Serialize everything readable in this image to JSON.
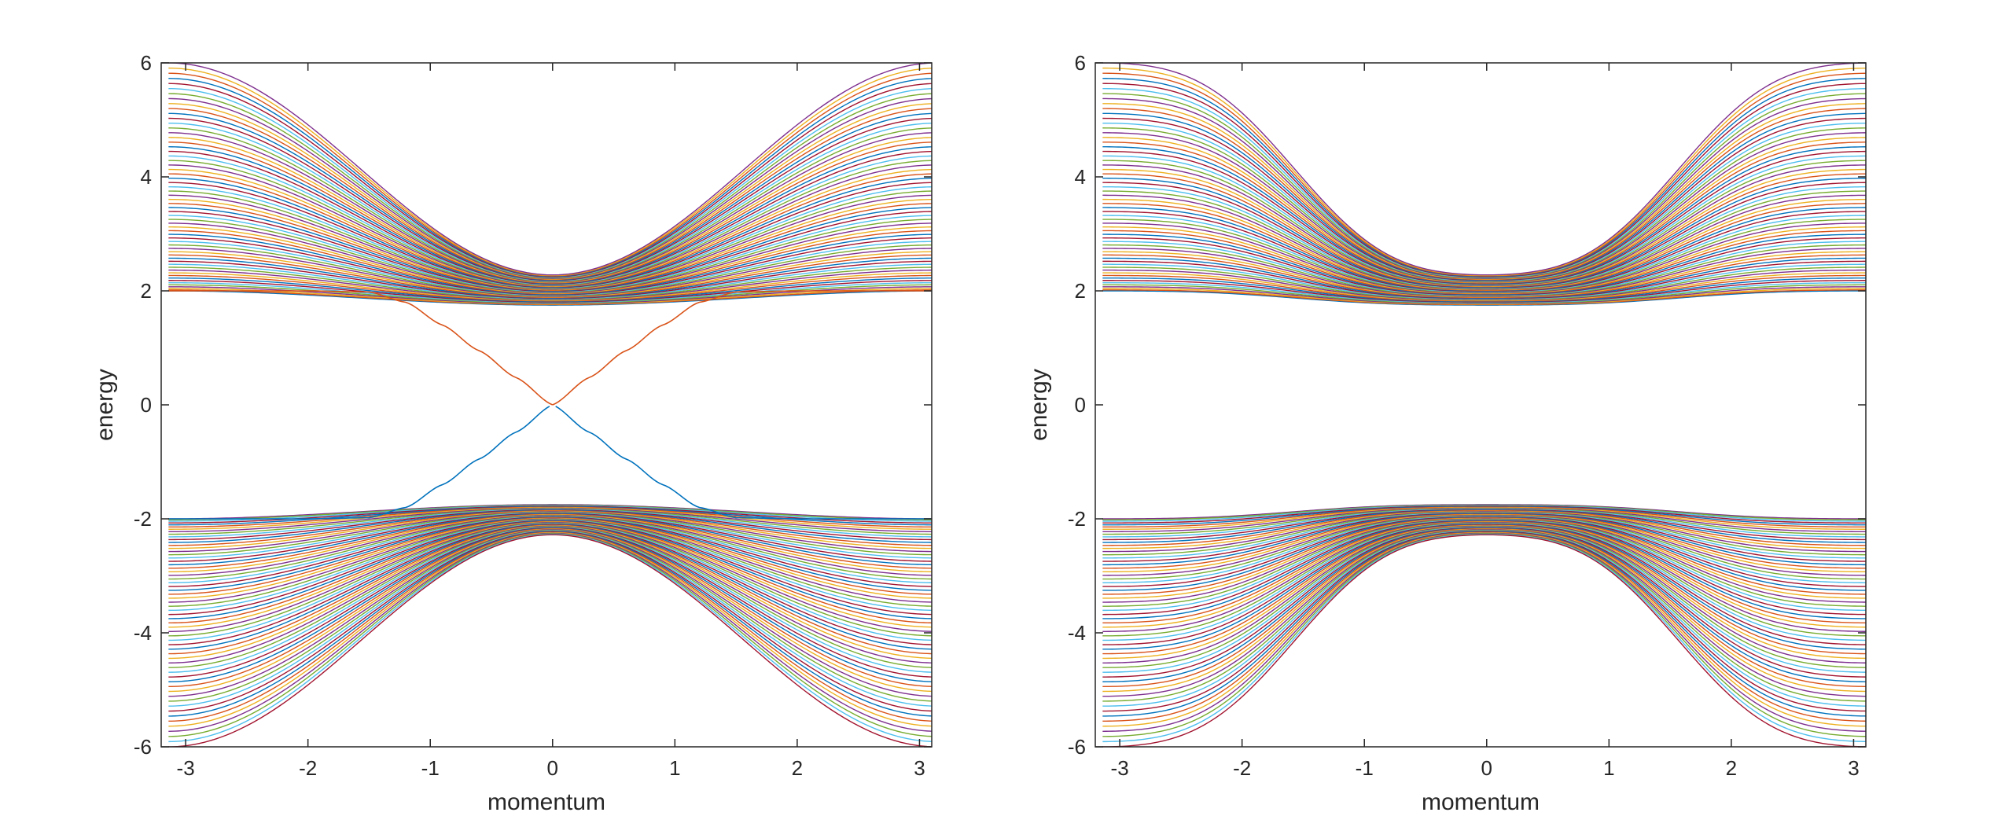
{
  "chart_data": [
    {
      "type": "line",
      "panel": "left",
      "xlabel": "momentum",
      "ylabel": "energy",
      "xlim": [
        -3.2,
        3.1
      ],
      "ylim": [
        -6,
        6
      ],
      "xticks": [
        -3,
        -2,
        -1,
        0,
        1,
        2,
        3
      ],
      "yticks": [
        -6,
        -4,
        -2,
        0,
        2,
        4,
        6
      ],
      "xtick_labels": [
        "-3",
        "-2",
        "-1",
        "0",
        "1",
        "2",
        "3"
      ],
      "ytick_labels": [
        "-6",
        "-4",
        "-2",
        "0",
        "2",
        "4",
        "6"
      ],
      "grid": false,
      "bulk_bands": {
        "count_per_band": 60,
        "upper_band_energy_at_k0": [
          1.75,
          2.28
        ],
        "upper_band_energy_at_k_edge": [
          2.0,
          6.0
        ],
        "lower_band_energy_at_k0": [
          -1.75,
          -2.28
        ],
        "lower_band_energy_at_k_edge": [
          -2.0,
          -6.0
        ]
      },
      "edge_states": [
        {
          "color": "#D95319",
          "x": [
            -3.14,
            -2.5,
            -2.0,
            -1.5,
            -1.2,
            -0.9,
            -0.6,
            -0.3,
            0,
            0.3,
            0.6,
            0.9,
            1.2,
            1.5,
            2.0,
            2.5,
            3.14
          ],
          "y_branches": [
            [
              2.0,
              2.0,
              2.0,
              1.98,
              1.8,
              1.4,
              0.95,
              0.48,
              0.0,
              -0.48,
              -0.95,
              -1.4,
              -1.8,
              -1.98,
              -2.0,
              -2.0,
              -2.0
            ],
            [
              -2.0,
              -2.0,
              -2.0,
              -1.98,
              -1.8,
              -1.4,
              -0.95,
              -0.48,
              0.0,
              0.48,
              0.95,
              1.4,
              1.8,
              1.98,
              2.0,
              2.0,
              2.0
            ]
          ]
        }
      ],
      "colors": [
        "#0072BD",
        "#D95319",
        "#EDB120",
        "#7E2F8E",
        "#77AC30",
        "#4DBEEE",
        "#A2142F"
      ]
    },
    {
      "type": "line",
      "panel": "right",
      "xlabel": "momentum",
      "ylabel": "energy",
      "xlim": [
        -3.2,
        3.1
      ],
      "ylim": [
        -6,
        6
      ],
      "xticks": [
        -3,
        -2,
        -1,
        0,
        1,
        2,
        3
      ],
      "yticks": [
        -6,
        -4,
        -2,
        0,
        2,
        4,
        6
      ],
      "xtick_labels": [
        "-3",
        "-2",
        "-1",
        "0",
        "1",
        "2",
        "3"
      ],
      "ytick_labels": [
        "-6",
        "-4",
        "-2",
        "0",
        "2",
        "4",
        "6"
      ],
      "grid": false,
      "bulk_bands": {
        "count_per_band": 60,
        "upper_band_energy_at_k0": [
          1.75,
          2.28
        ],
        "upper_band_energy_at_k_edge": [
          2.0,
          6.0
        ],
        "lower_band_energy_at_k0": [
          -1.75,
          -2.28
        ],
        "lower_band_energy_at_k_edge": [
          -2.0,
          -6.0
        ]
      },
      "edge_states": [],
      "colors": [
        "#0072BD",
        "#D95319",
        "#EDB120",
        "#7E2F8E",
        "#77AC30",
        "#4DBEEE",
        "#A2142F"
      ]
    }
  ]
}
